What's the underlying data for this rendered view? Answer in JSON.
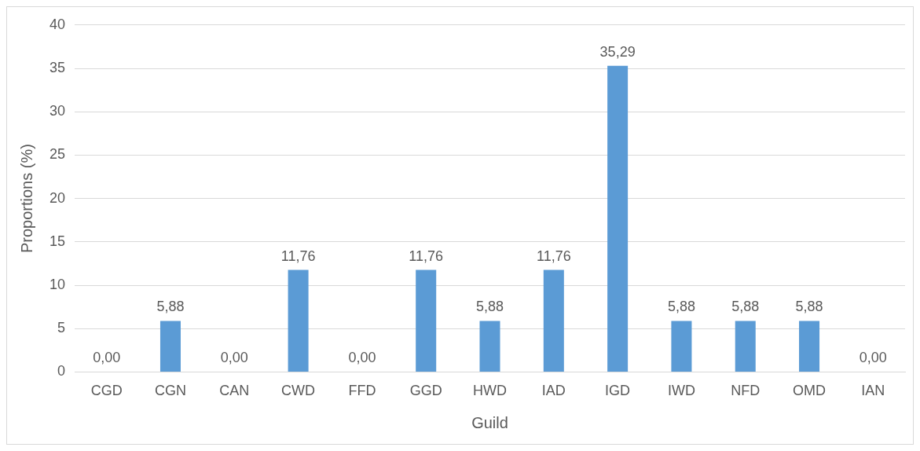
{
  "chart_data": {
    "type": "bar",
    "xlabel": "Guild",
    "ylabel": "Proportions (%)",
    "categories": [
      "CGD",
      "CGN",
      "CAN",
      "CWD",
      "FFD",
      "GGD",
      "HWD",
      "IAD",
      "IGD",
      "IWD",
      "NFD",
      "OMD",
      "IAN"
    ],
    "values": [
      0,
      5.88,
      0,
      11.76,
      0,
      11.76,
      5.88,
      11.76,
      35.29,
      5.88,
      5.88,
      5.88,
      0
    ],
    "value_labels": [
      "0,00",
      "5,88",
      "0,00",
      "11,76",
      "0,00",
      "11,76",
      "5,88",
      "11,76",
      "35,29",
      "5,88",
      "5,88",
      "5,88",
      "0,00"
    ],
    "color": "#5b9bd5",
    "ylim": [
      0,
      40
    ],
    "yticks": [
      0,
      5,
      10,
      15,
      20,
      25,
      30,
      35,
      40
    ],
    "grid": "y",
    "legend": false
  }
}
